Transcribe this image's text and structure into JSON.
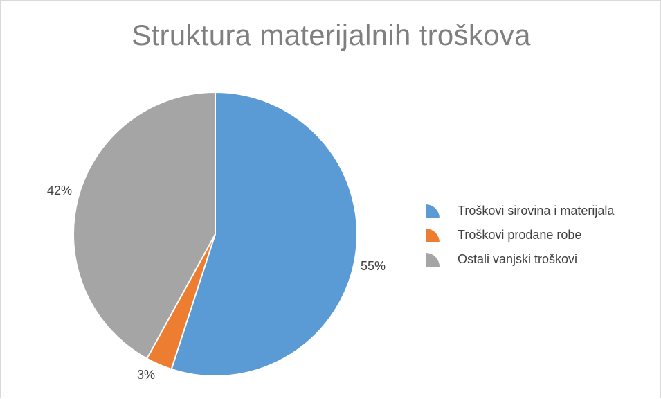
{
  "chart_data": {
    "type": "pie",
    "title": "Struktura materijalnih troškova",
    "slices": [
      {
        "label": "Troškovi sirovina i materijala",
        "value": 55,
        "data_label": "55%",
        "color": "#5b9bd5"
      },
      {
        "label": "Troškovi prodane robe",
        "value": 3,
        "data_label": "3%",
        "color": "#ed7d31"
      },
      {
        "label": "Ostali vanjski troškovi",
        "value": 42,
        "data_label": "42%",
        "color": "#a5a5a5"
      }
    ],
    "legend_position": "right",
    "start_angle": "top, clockwise"
  }
}
